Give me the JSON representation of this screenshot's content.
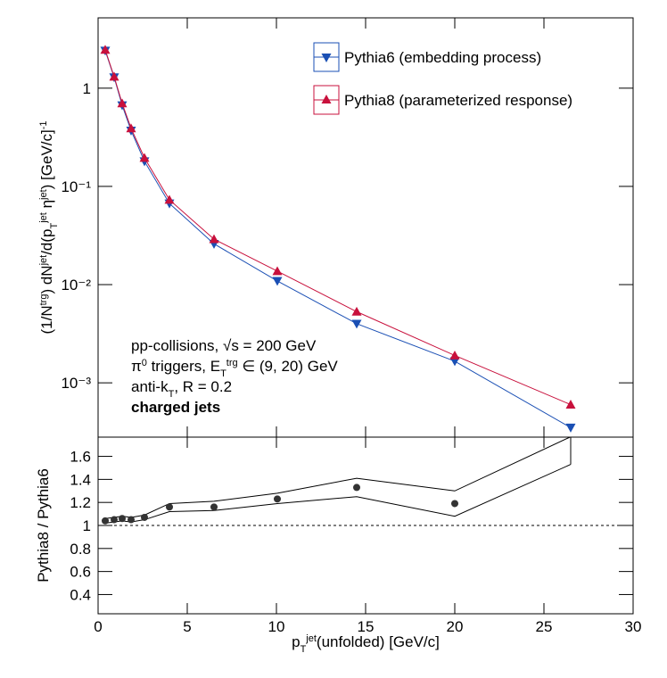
{
  "chart_data": [
    {
      "type": "line",
      "log_y": true,
      "x": [
        0.4,
        0.9,
        1.35,
        1.85,
        2.6,
        4.0,
        6.5,
        10.05,
        14.5,
        20,
        26.5
      ],
      "series": [
        {
          "name": "Pythia6 (embedding process)",
          "color": "#1a4fb4",
          "marker": "triangle-down",
          "values": [
            2.41,
            1.29,
            0.67,
            0.37,
            0.18,
            0.067,
            0.026,
            0.0109,
            0.004,
            0.00166,
            0.00035
          ]
        },
        {
          "name": "Pythia8 (parameterized response)",
          "color": "#c8103c",
          "marker": "triangle-up",
          "values": [
            2.46,
            1.31,
            0.7,
            0.39,
            0.195,
            0.073,
            0.029,
            0.0137,
            0.0053,
            0.0019,
            0.0006
          ]
        }
      ],
      "xlim": [
        0,
        30
      ],
      "xticks": [
        0,
        5,
        10,
        15,
        20,
        25,
        30
      ],
      "ylim": [
        0.00028,
        5.2
      ],
      "yticks": [
        {
          "value": 0.001,
          "label": "10⁻³"
        },
        {
          "value": 0.01,
          "label": "10⁻²"
        },
        {
          "value": 0.1,
          "label": "10⁻¹"
        },
        1
      ],
      "ylabel": [
        {
          "text": "(1/N"
        },
        {
          "text": "trg",
          "pos": "sup"
        },
        {
          "text": ") dN"
        },
        {
          "text": "jet",
          "pos": "sup"
        },
        {
          "text": "/d(p"
        },
        {
          "text": "T",
          "pos": "sub"
        },
        {
          "text": "jet",
          "pos": "sup"
        },
        {
          "text": " η"
        },
        {
          "text": "jet",
          "pos": "sup"
        },
        {
          "text": ") [GeV/c]"
        },
        {
          "text": "-1",
          "pos": "sup"
        }
      ],
      "annotations": [
        [
          {
            "text": "pp-collisions, √s = 200 GeV"
          }
        ],
        [
          {
            "text": "π"
          },
          {
            "text": "0",
            "pos": "sup"
          },
          {
            "text": " triggers, E"
          },
          {
            "text": "T",
            "pos": "sub"
          },
          {
            "text": "trg",
            "pos": "sup"
          },
          {
            "text": " ∈ (9, 20) GeV"
          }
        ],
        [
          {
            "text": "anti-k"
          },
          {
            "text": "T",
            "pos": "sub"
          },
          {
            "text": ", R = 0.2"
          }
        ],
        [
          {
            "text": "charged jets",
            "bold": true
          }
        ]
      ],
      "legend": "top-right"
    },
    {
      "type": "ratio",
      "x": [
        0.4,
        0.9,
        1.35,
        1.85,
        2.6,
        4.0,
        6.5,
        10.05,
        14.5,
        20,
        26.5
      ],
      "values": [
        1.04,
        1.05,
        1.06,
        1.05,
        1.07,
        1.16,
        1.16,
        1.23,
        1.33,
        1.19,
        null
      ],
      "band_upper": [
        1.06,
        1.07,
        1.08,
        1.07,
        1.09,
        1.19,
        1.21,
        1.28,
        1.41,
        1.3,
        1.77
      ],
      "band_lower": [
        1.02,
        1.03,
        1.04,
        1.03,
        1.05,
        1.12,
        1.13,
        1.19,
        1.25,
        1.08,
        1.53
      ],
      "color": "#333333",
      "reference": 1,
      "xlim": [
        0,
        30
      ],
      "xticks": [
        0,
        5,
        10,
        15,
        20,
        25,
        30
      ],
      "ylim": [
        0.233,
        1.767
      ],
      "yticks": [
        0.4,
        0.6,
        0.8,
        1,
        1.2,
        1.4,
        1.6
      ],
      "ylabel": [
        {
          "text": "Pythia8 / Pythia6"
        }
      ],
      "xlabel": [
        {
          "text": "p"
        },
        {
          "text": "T",
          "pos": "sub"
        },
        {
          "text": "jet",
          "pos": "sup"
        },
        {
          "text": "(unfolded) [GeV/c]"
        }
      ]
    }
  ]
}
